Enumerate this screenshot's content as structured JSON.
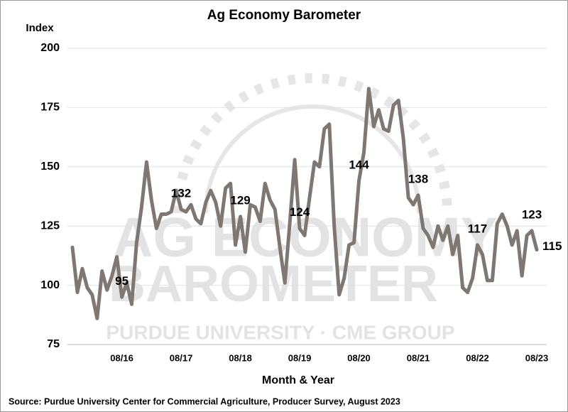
{
  "chart_data": {
    "type": "line",
    "title": "Ag Economy Barometer",
    "y_label": "Index",
    "x_label": "Month & Year",
    "source": "Source: Purdue University Center for Commercial Agriculture, Producer Survey, August 2023",
    "watermark": {
      "line1": "AG ECONOMY",
      "line2": "BAROMETER",
      "line3": "PURDUE UNIVERSITY · CME GROUP"
    },
    "categories": [
      null,
      null,
      null,
      null,
      null,
      null,
      null,
      null,
      null,
      null,
      "08/16",
      null,
      null,
      null,
      null,
      null,
      null,
      null,
      null,
      null,
      null,
      null,
      "08/17",
      null,
      null,
      null,
      null,
      null,
      null,
      null,
      null,
      null,
      null,
      null,
      "08/18",
      null,
      null,
      null,
      null,
      null,
      null,
      null,
      null,
      null,
      null,
      null,
      "08/19",
      null,
      null,
      null,
      null,
      null,
      null,
      null,
      null,
      null,
      null,
      null,
      "08/20",
      null,
      null,
      null,
      null,
      null,
      null,
      null,
      null,
      null,
      null,
      null,
      "08/21",
      null,
      null,
      null,
      null,
      null,
      null,
      null,
      null,
      null,
      null,
      null,
      "08/22",
      null,
      null,
      null,
      null,
      null,
      null,
      null,
      null,
      null,
      null,
      null,
      "08/23"
    ],
    "values": [
      116,
      97,
      107,
      99,
      96,
      86,
      106,
      98,
      104,
      112,
      95,
      101,
      92,
      118,
      133,
      152,
      136,
      124,
      130,
      130,
      131,
      140,
      132,
      131,
      134,
      128,
      126,
      135,
      140,
      135,
      125,
      141,
      143,
      117,
      129,
      114,
      134,
      133,
      127,
      143,
      136,
      132,
      116,
      101,
      126,
      153,
      124,
      121,
      137,
      152,
      150,
      166,
      168,
      125,
      96,
      103,
      117,
      118,
      144,
      156,
      183,
      167,
      174,
      166,
      165,
      176,
      178,
      162,
      137,
      134,
      138,
      124,
      121,
      116,
      125,
      119,
      125,
      113,
      121,
      99,
      97,
      103,
      117,
      113,
      102,
      102,
      126,
      130,
      125,
      117,
      123,
      104,
      121,
      123,
      115
    ],
    "value_labels": [
      null,
      null,
      null,
      null,
      null,
      null,
      null,
      null,
      null,
      null,
      "95",
      null,
      null,
      null,
      null,
      null,
      null,
      null,
      null,
      null,
      null,
      null,
      "132",
      null,
      null,
      null,
      null,
      null,
      null,
      null,
      null,
      null,
      null,
      null,
      "129",
      null,
      null,
      null,
      null,
      null,
      null,
      null,
      null,
      null,
      null,
      null,
      "124",
      null,
      null,
      null,
      null,
      null,
      null,
      null,
      null,
      null,
      null,
      null,
      "144",
      null,
      null,
      null,
      null,
      null,
      null,
      null,
      null,
      null,
      null,
      null,
      "138",
      null,
      null,
      null,
      null,
      null,
      null,
      null,
      null,
      null,
      null,
      null,
      "117",
      null,
      null,
      null,
      null,
      null,
      null,
      null,
      null,
      null,
      null,
      "123",
      "115"
    ],
    "color": "#7f7771",
    "ylim": [
      75,
      200
    ],
    "yticks": [
      75,
      100,
      125,
      150,
      175,
      200
    ],
    "grid": true
  }
}
